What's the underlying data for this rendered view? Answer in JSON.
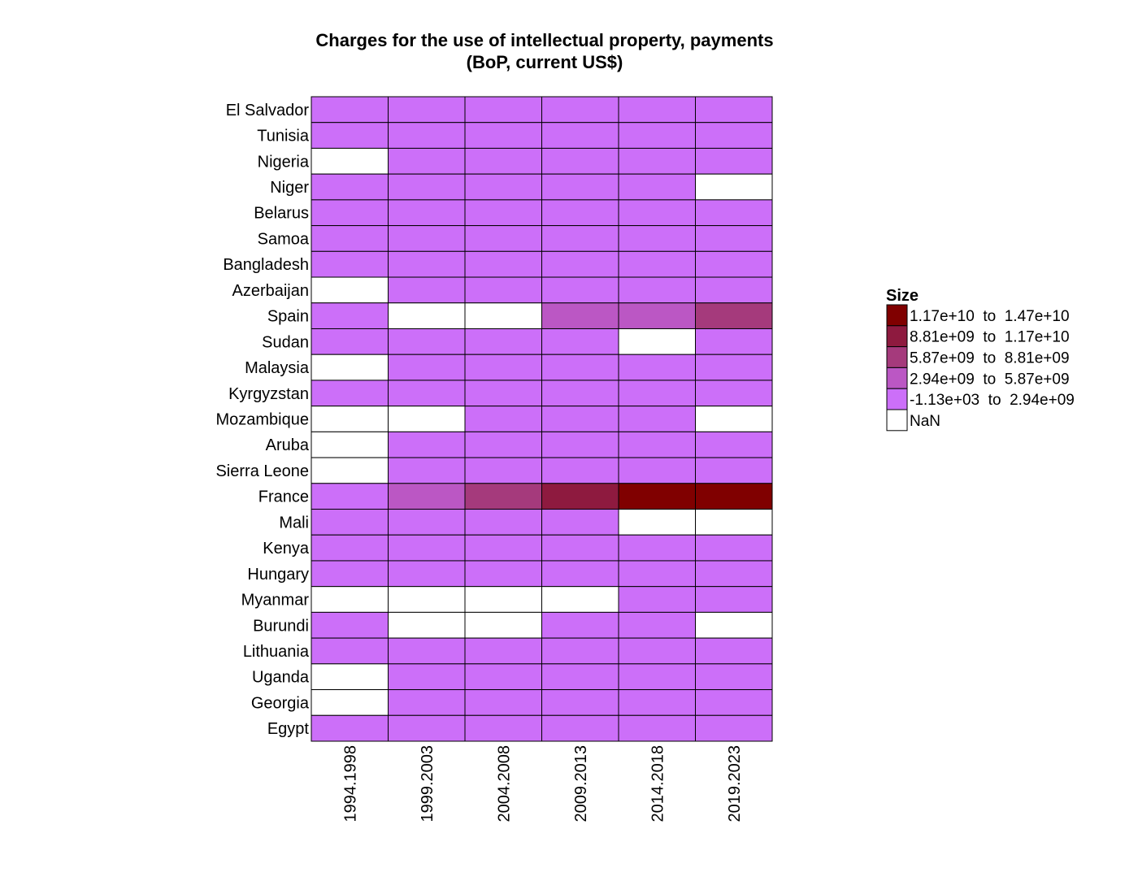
{
  "chart_data": {
    "type": "heatmap",
    "title": [
      "Charges for the use of intellectual property, payments",
      "(BoP, current US$)"
    ],
    "rows": [
      "El Salvador",
      "Tunisia",
      "Nigeria",
      "Niger",
      "Belarus",
      "Samoa",
      "Bangladesh",
      "Azerbaijan",
      "Spain",
      "Sudan",
      "Malaysia",
      "Kyrgyzstan",
      "Mozambique",
      "Aruba",
      "Sierra Leone",
      "France",
      "Mali",
      "Kenya",
      "Hungary",
      "Myanmar",
      "Burundi",
      "Lithuania",
      "Uganda",
      "Georgia",
      "Egypt"
    ],
    "columns": [
      "1994.1998",
      "1999.2003",
      "2004.2008",
      "2009.2013",
      "2014.2018",
      "2019.2023"
    ],
    "cells": [
      [
        0,
        0,
        0,
        0,
        0,
        0
      ],
      [
        0,
        0,
        0,
        0,
        0,
        0
      ],
      [
        null,
        0,
        0,
        0,
        0,
        0
      ],
      [
        0,
        0,
        0,
        0,
        0,
        null
      ],
      [
        0,
        0,
        0,
        0,
        0,
        0
      ],
      [
        0,
        0,
        0,
        0,
        0,
        0
      ],
      [
        0,
        0,
        0,
        0,
        0,
        0
      ],
      [
        null,
        0,
        0,
        0,
        0,
        0
      ],
      [
        0,
        null,
        null,
        1,
        1,
        2
      ],
      [
        0,
        0,
        0,
        0,
        null,
        0
      ],
      [
        null,
        0,
        0,
        0,
        0,
        0
      ],
      [
        0,
        0,
        0,
        0,
        0,
        0
      ],
      [
        null,
        null,
        0,
        0,
        0,
        null
      ],
      [
        null,
        0,
        0,
        0,
        0,
        0
      ],
      [
        null,
        0,
        0,
        0,
        0,
        0
      ],
      [
        0,
        1,
        2,
        3,
        4,
        4
      ],
      [
        0,
        0,
        0,
        0,
        null,
        null
      ],
      [
        0,
        0,
        0,
        0,
        0,
        0
      ],
      [
        0,
        0,
        0,
        0,
        0,
        0
      ],
      [
        null,
        null,
        null,
        null,
        0,
        0
      ],
      [
        0,
        null,
        null,
        0,
        0,
        null
      ],
      [
        0,
        0,
        0,
        0,
        0,
        0
      ],
      [
        null,
        0,
        0,
        0,
        0,
        0
      ],
      [
        null,
        0,
        0,
        0,
        0,
        0
      ],
      [
        0,
        0,
        0,
        0,
        0,
        0
      ]
    ],
    "bins": [
      {
        "label": "-1.13e+03  to  2.94e+09",
        "color": "#cc6ff9"
      },
      {
        "label": "2.94e+09  to  5.87e+09",
        "color": "#bb57c4"
      },
      {
        "label": "5.87e+09  to  8.81e+09",
        "color": "#a53a7c"
      },
      {
        "label": "8.81e+09  to  1.17e+10",
        "color": "#8e1a3f"
      },
      {
        "label": "1.17e+10  to  1.47e+10",
        "color": "#800000"
      }
    ],
    "nan": {
      "label": "NaN",
      "color": "#ffffff"
    },
    "legend": {
      "title": "Size",
      "position": "right"
    }
  }
}
